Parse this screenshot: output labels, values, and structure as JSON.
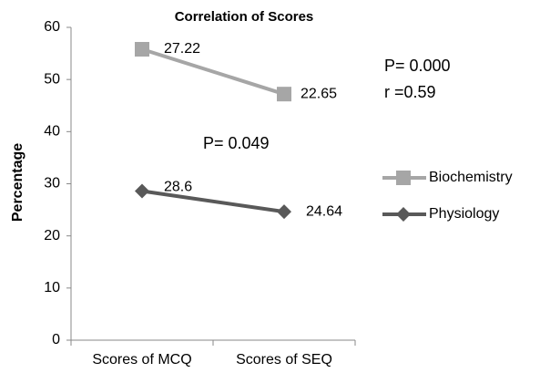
{
  "chart_data": {
    "type": "line",
    "title": "Correlation of Scores",
    "ylabel": "Percentage",
    "categories": [
      "Scores of MCQ",
      "Scores of SEQ"
    ],
    "series": [
      {
        "name": "Biochemistry",
        "color": "#a6a6a6",
        "marker": "square",
        "values": [
          55.8,
          47.2
        ]
      },
      {
        "name": "Physiology",
        "color": "#595959",
        "marker": "diamond",
        "values": [
          28.6,
          24.64
        ]
      }
    ],
    "annotations": [
      "27.22",
      "22.65",
      "P= 0.000",
      "r =0.59",
      "P= 0.049"
    ],
    "ylim": [
      0,
      60
    ],
    "yticks": [
      0,
      10,
      20,
      30,
      40,
      50,
      60
    ],
    "grid": false,
    "legend": "right"
  }
}
